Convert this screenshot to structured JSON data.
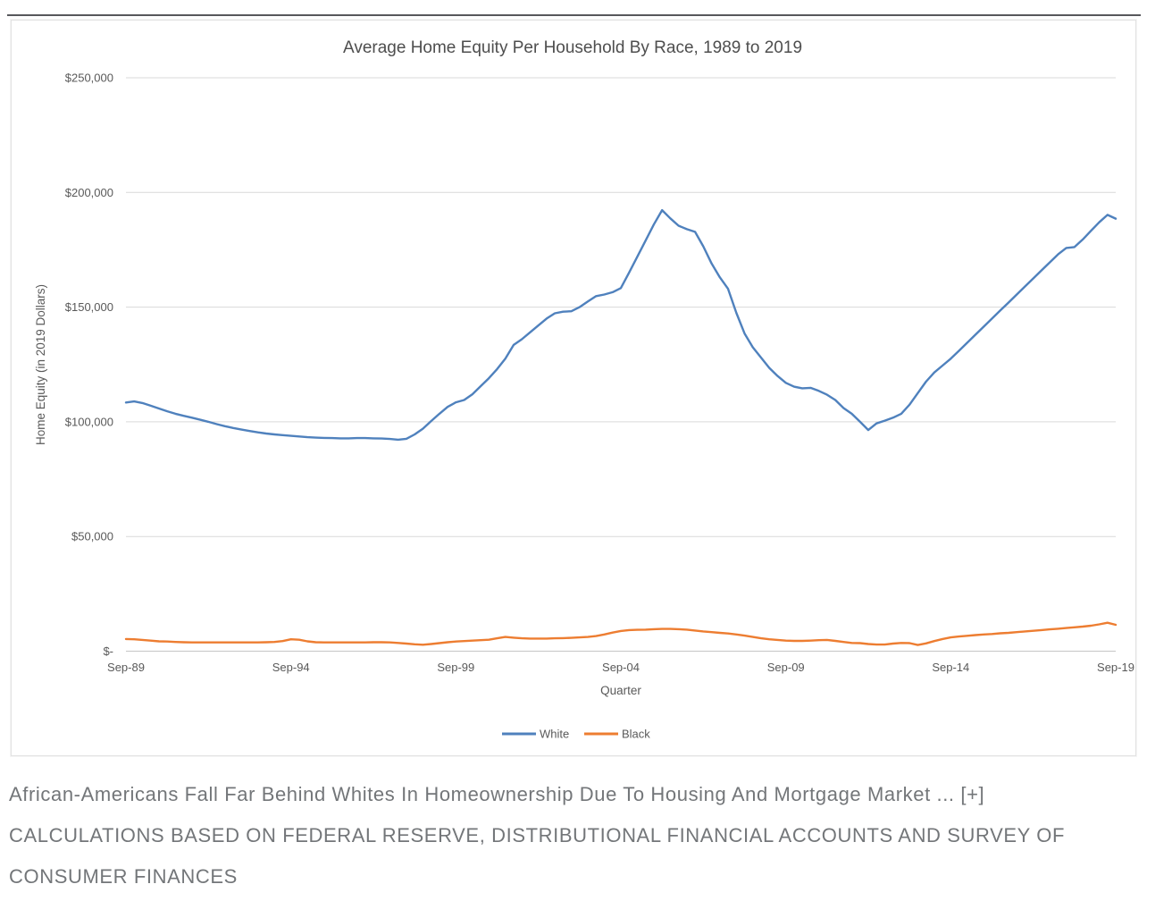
{
  "caption": {
    "line1": "African-Americans Fall Far Behind Whites In Homeownership Due To Housing And Mortgage Market ...",
    "expand": "[+]",
    "line2": "CALCULATIONS BASED ON FEDERAL RESERVE, DISTRIBUTIONAL FINANCIAL ACCOUNTS AND SURVEY OF",
    "line3": "CONSUMER FINANCES"
  },
  "chart_data": {
    "type": "line",
    "title": "Average Home Equity Per Household By Race, 1989 to 2019",
    "xlabel": "Quarter",
    "ylabel": "Home Equity (in 2019 Dollars)",
    "x_frequency": "quarterly",
    "x_start": "Sep-89",
    "x_end": "Sep-19",
    "x_points": 121,
    "x_tick_labels": [
      "Sep-89",
      "Sep-94",
      "Sep-99",
      "Sep-04",
      "Sep-09",
      "Sep-14",
      "Sep-19"
    ],
    "x_tick_step_quarters": 20,
    "y_tick_labels": [
      "$-",
      "$50,000",
      "$100,000",
      "$150,000",
      "$200,000",
      "$250,000"
    ],
    "ylim": [
      0,
      250000
    ],
    "grid": true,
    "grid_color": "#d9d9d9",
    "axis_color": "#c6c6c6",
    "text_color": "#595959",
    "legend_position": "bottom",
    "series": [
      {
        "name": "White",
        "color": "#4f81bd",
        "values": [
          108400,
          108900,
          108200,
          107000,
          105800,
          104600,
          103500,
          102600,
          101800,
          100900,
          100000,
          99000,
          98100,
          97300,
          96600,
          96000,
          95400,
          94900,
          94500,
          94200,
          93900,
          93600,
          93300,
          93100,
          93000,
          92900,
          92800,
          92800,
          92900,
          92900,
          92800,
          92700,
          92500,
          92200,
          92600,
          94500,
          97000,
          100300,
          103500,
          106500,
          108500,
          109500,
          112000,
          115500,
          119000,
          123000,
          127500,
          133500,
          136000,
          139000,
          142000,
          145000,
          147300,
          148000,
          148200,
          150000,
          152500,
          154800,
          155500,
          156500,
          158300,
          165000,
          172000,
          179000,
          186000,
          192300,
          188700,
          185500,
          184000,
          182800,
          176500,
          169000,
          163000,
          158000,
          147500,
          138500,
          132500,
          128000,
          123500,
          120000,
          117000,
          115300,
          114600,
          114800,
          113500,
          111800,
          109500,
          106000,
          103500,
          100000,
          96400,
          99300,
          100500,
          101800,
          103500,
          107500,
          112500,
          117500,
          121500,
          124500,
          127500,
          131000,
          134500,
          138000,
          141500,
          145000,
          148500,
          152000,
          155500,
          159000,
          162500,
          166000,
          169500,
          173000,
          175800,
          176200,
          179500,
          183300,
          187000,
          190200,
          188600
        ]
      },
      {
        "name": "Black",
        "color": "#ed7d31",
        "values": [
          5300,
          5200,
          4900,
          4600,
          4300,
          4200,
          4000,
          3900,
          3800,
          3800,
          3800,
          3800,
          3800,
          3800,
          3800,
          3800,
          3800,
          3900,
          4000,
          4400,
          5200,
          5000,
          4300,
          3900,
          3800,
          3800,
          3800,
          3800,
          3800,
          3800,
          3900,
          3900,
          3800,
          3600,
          3300,
          3000,
          2800,
          3100,
          3500,
          3900,
          4200,
          4400,
          4600,
          4800,
          5000,
          5600,
          6200,
          5900,
          5600,
          5500,
          5500,
          5500,
          5600,
          5700,
          5800,
          6000,
          6200,
          6600,
          7300,
          8100,
          8800,
          9200,
          9300,
          9400,
          9600,
          9700,
          9700,
          9600,
          9400,
          9000,
          8600,
          8300,
          8000,
          7700,
          7300,
          6800,
          6200,
          5600,
          5200,
          4900,
          4600,
          4500,
          4500,
          4600,
          4800,
          4900,
          4500,
          4000,
          3600,
          3500,
          3100,
          2900,
          2900,
          3300,
          3600,
          3500,
          2700,
          3400,
          4400,
          5300,
          6000,
          6400,
          6700,
          7000,
          7300,
          7500,
          7800,
          8000,
          8300,
          8600,
          8900,
          9200,
          9500,
          9800,
          10100,
          10400,
          10700,
          11100,
          11700,
          12400,
          11500
        ]
      }
    ]
  }
}
